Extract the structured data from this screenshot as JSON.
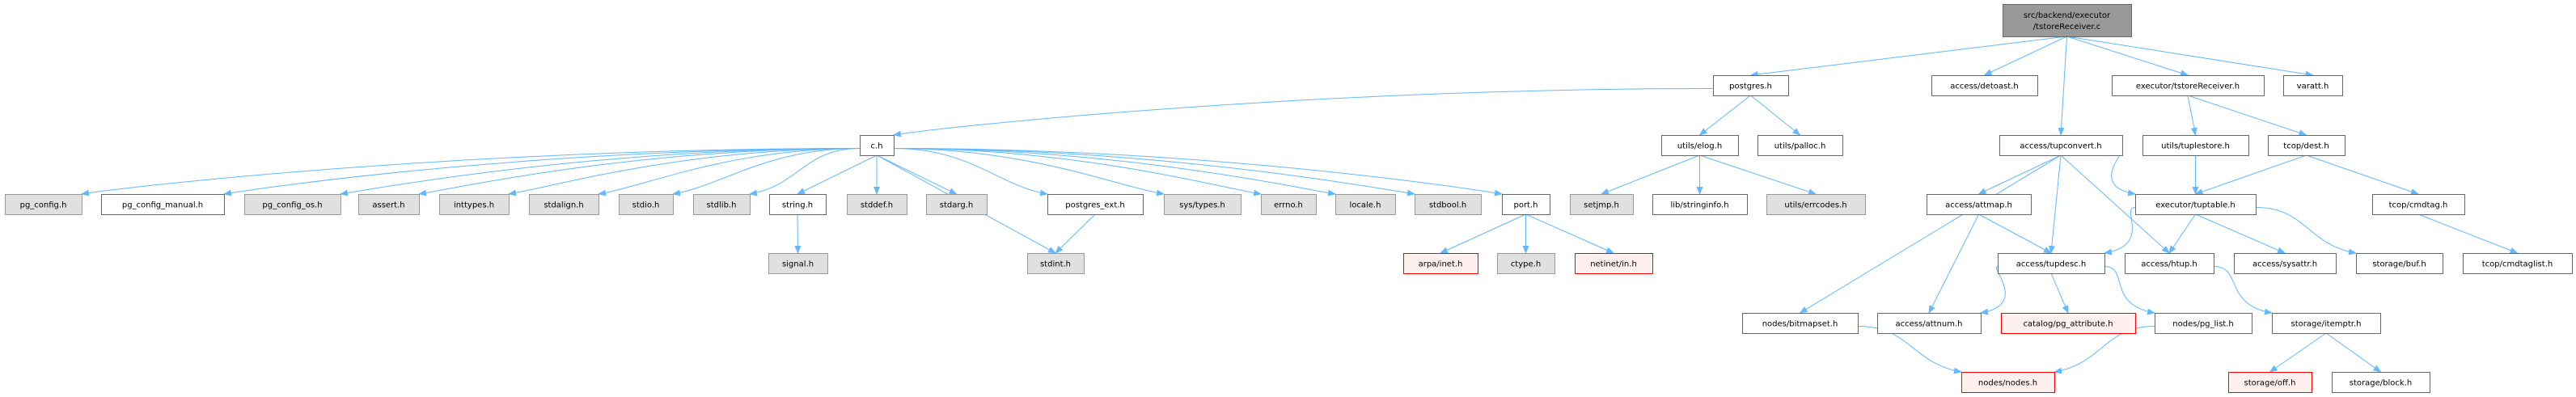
{
  "graph": {
    "edge_color": "#63b8ff",
    "styles": {
      "root": {
        "fill": "#999999",
        "stroke": "#666666"
      },
      "doc": {
        "fill": "#ffffff",
        "stroke": "#666666"
      },
      "external": {
        "fill": "#e0e0e0",
        "stroke": "#999999"
      },
      "missing": {
        "fill": "#fff0f0",
        "stroke": "#ff0000"
      }
    },
    "nodes": [
      {
        "id": "root",
        "label": [
          "src/backend/executor",
          "/tstoreReceiver.c"
        ],
        "style": "root"
      },
      {
        "id": "postgres",
        "label": [
          "postgres.h"
        ],
        "style": "doc"
      },
      {
        "id": "detoast",
        "label": [
          "access/detoast.h"
        ],
        "style": "doc"
      },
      {
        "id": "tstorerecv",
        "label": [
          "executor/tstoreReceiver.h"
        ],
        "style": "doc"
      },
      {
        "id": "varatt",
        "label": [
          "varatt.h"
        ],
        "style": "doc"
      },
      {
        "id": "ch",
        "label": [
          "c.h"
        ],
        "style": "doc"
      },
      {
        "id": "elog",
        "label": [
          "utils/elog.h"
        ],
        "style": "doc"
      },
      {
        "id": "palloc",
        "label": [
          "utils/palloc.h"
        ],
        "style": "doc"
      },
      {
        "id": "tupconvert",
        "label": [
          "access/tupconvert.h"
        ],
        "style": "doc"
      },
      {
        "id": "tuplestore",
        "label": [
          "utils/tuplestore.h"
        ],
        "style": "doc"
      },
      {
        "id": "dest",
        "label": [
          "tcop/dest.h"
        ],
        "style": "doc"
      },
      {
        "id": "pg_config",
        "label": [
          "pg_config.h"
        ],
        "style": "external"
      },
      {
        "id": "pg_config_manual",
        "label": [
          "pg_config_manual.h"
        ],
        "style": "doc"
      },
      {
        "id": "pg_config_os",
        "label": [
          "pg_config_os.h"
        ],
        "style": "external"
      },
      {
        "id": "assert",
        "label": [
          "assert.h"
        ],
        "style": "external"
      },
      {
        "id": "inttypes",
        "label": [
          "inttypes.h"
        ],
        "style": "external"
      },
      {
        "id": "stdalign",
        "label": [
          "stdalign.h"
        ],
        "style": "external"
      },
      {
        "id": "stdio",
        "label": [
          "stdio.h"
        ],
        "style": "external"
      },
      {
        "id": "stdlib",
        "label": [
          "stdlib.h"
        ],
        "style": "external"
      },
      {
        "id": "string",
        "label": [
          "string.h"
        ],
        "style": "doc"
      },
      {
        "id": "stddef",
        "label": [
          "stddef.h"
        ],
        "style": "external"
      },
      {
        "id": "stdarg",
        "label": [
          "stdarg.h"
        ],
        "style": "external"
      },
      {
        "id": "postgres_ext",
        "label": [
          "postgres_ext.h"
        ],
        "style": "doc"
      },
      {
        "id": "systypes",
        "label": [
          "sys/types.h"
        ],
        "style": "external"
      },
      {
        "id": "errno",
        "label": [
          "errno.h"
        ],
        "style": "external"
      },
      {
        "id": "locale",
        "label": [
          "locale.h"
        ],
        "style": "external"
      },
      {
        "id": "stdbool",
        "label": [
          "stdbool.h"
        ],
        "style": "external"
      },
      {
        "id": "port",
        "label": [
          "port.h"
        ],
        "style": "doc"
      },
      {
        "id": "setjmp",
        "label": [
          "setjmp.h"
        ],
        "style": "external"
      },
      {
        "id": "stringinfo",
        "label": [
          "lib/stringinfo.h"
        ],
        "style": "doc"
      },
      {
        "id": "errcodes",
        "label": [
          "utils/errcodes.h"
        ],
        "style": "external"
      },
      {
        "id": "attmap",
        "label": [
          "access/attmap.h"
        ],
        "style": "doc"
      },
      {
        "id": "tuptable",
        "label": [
          "executor/tuptable.h"
        ],
        "style": "doc"
      },
      {
        "id": "cmdtag",
        "label": [
          "tcop/cmdtag.h"
        ],
        "style": "doc"
      },
      {
        "id": "signal",
        "label": [
          "signal.h"
        ],
        "style": "external"
      },
      {
        "id": "stdint",
        "label": [
          "stdint.h"
        ],
        "style": "external"
      },
      {
        "id": "arpainet",
        "label": [
          "arpa/inet.h"
        ],
        "style": "missing"
      },
      {
        "id": "ctype",
        "label": [
          "ctype.h"
        ],
        "style": "external"
      },
      {
        "id": "netinetin",
        "label": [
          "netinet/in.h"
        ],
        "style": "missing"
      },
      {
        "id": "tupdesc",
        "label": [
          "access/tupdesc.h"
        ],
        "style": "doc"
      },
      {
        "id": "htup",
        "label": [
          "access/htup.h"
        ],
        "style": "doc"
      },
      {
        "id": "sysattr",
        "label": [
          "access/sysattr.h"
        ],
        "style": "doc"
      },
      {
        "id": "buf",
        "label": [
          "storage/buf.h"
        ],
        "style": "doc"
      },
      {
        "id": "cmdtaglist",
        "label": [
          "tcop/cmdtaglist.h"
        ],
        "style": "doc"
      },
      {
        "id": "bitmapset",
        "label": [
          "nodes/bitmapset.h"
        ],
        "style": "doc"
      },
      {
        "id": "attnum",
        "label": [
          "access/attnum.h"
        ],
        "style": "doc"
      },
      {
        "id": "pg_attribute",
        "label": [
          "catalog/pg_attribute.h"
        ],
        "style": "missing"
      },
      {
        "id": "pg_list",
        "label": [
          "nodes/pg_list.h"
        ],
        "style": "doc"
      },
      {
        "id": "itemptr",
        "label": [
          "storage/itemptr.h"
        ],
        "style": "doc"
      },
      {
        "id": "nodes",
        "label": [
          "nodes/nodes.h"
        ],
        "style": "missing"
      },
      {
        "id": "off",
        "label": [
          "storage/off.h"
        ],
        "style": "missing"
      },
      {
        "id": "block",
        "label": [
          "storage/block.h"
        ],
        "style": "doc"
      }
    ],
    "edges": [
      [
        "root",
        "postgres"
      ],
      [
        "root",
        "detoast"
      ],
      [
        "root",
        "tupconvert"
      ],
      [
        "root",
        "tstorerecv"
      ],
      [
        "root",
        "varatt"
      ],
      [
        "postgres",
        "ch"
      ],
      [
        "postgres",
        "elog"
      ],
      [
        "postgres",
        "palloc"
      ],
      [
        "ch",
        "pg_config"
      ],
      [
        "ch",
        "pg_config_manual"
      ],
      [
        "ch",
        "pg_config_os"
      ],
      [
        "ch",
        "assert"
      ],
      [
        "ch",
        "inttypes"
      ],
      [
        "ch",
        "stdalign"
      ],
      [
        "ch",
        "stdio"
      ],
      [
        "ch",
        "stdlib"
      ],
      [
        "ch",
        "string"
      ],
      [
        "ch",
        "stddef"
      ],
      [
        "ch",
        "stdarg"
      ],
      [
        "ch",
        "stdint"
      ],
      [
        "ch",
        "postgres_ext"
      ],
      [
        "ch",
        "systypes"
      ],
      [
        "ch",
        "errno"
      ],
      [
        "ch",
        "locale"
      ],
      [
        "ch",
        "stdbool"
      ],
      [
        "ch",
        "port"
      ],
      [
        "string",
        "signal"
      ],
      [
        "postgres_ext",
        "stdint"
      ],
      [
        "port",
        "arpainet"
      ],
      [
        "port",
        "ctype"
      ],
      [
        "port",
        "netinetin"
      ],
      [
        "elog",
        "setjmp"
      ],
      [
        "elog",
        "stringinfo"
      ],
      [
        "elog",
        "errcodes"
      ],
      [
        "tstorerecv",
        "tuplestore"
      ],
      [
        "tstorerecv",
        "dest"
      ],
      [
        "tupconvert",
        "bitmapset"
      ],
      [
        "tupconvert",
        "attmap"
      ],
      [
        "tupconvert",
        "tupdesc"
      ],
      [
        "tupconvert",
        "htup"
      ],
      [
        "tupconvert",
        "tuptable"
      ],
      [
        "tuplestore",
        "tuptable"
      ],
      [
        "dest",
        "tuptable"
      ],
      [
        "dest",
        "cmdtag"
      ],
      [
        "attmap",
        "attnum"
      ],
      [
        "attmap",
        "tupdesc"
      ],
      [
        "tuptable",
        "tupdesc"
      ],
      [
        "tuptable",
        "htup"
      ],
      [
        "tuptable",
        "sysattr"
      ],
      [
        "tuptable",
        "buf"
      ],
      [
        "cmdtag",
        "cmdtaglist"
      ],
      [
        "tupdesc",
        "attnum"
      ],
      [
        "tupdesc",
        "pg_attribute"
      ],
      [
        "tupdesc",
        "pg_list"
      ],
      [
        "htup",
        "itemptr"
      ],
      [
        "bitmapset",
        "nodes"
      ],
      [
        "pg_list",
        "nodes"
      ],
      [
        "itemptr",
        "off"
      ],
      [
        "itemptr",
        "block"
      ]
    ]
  }
}
